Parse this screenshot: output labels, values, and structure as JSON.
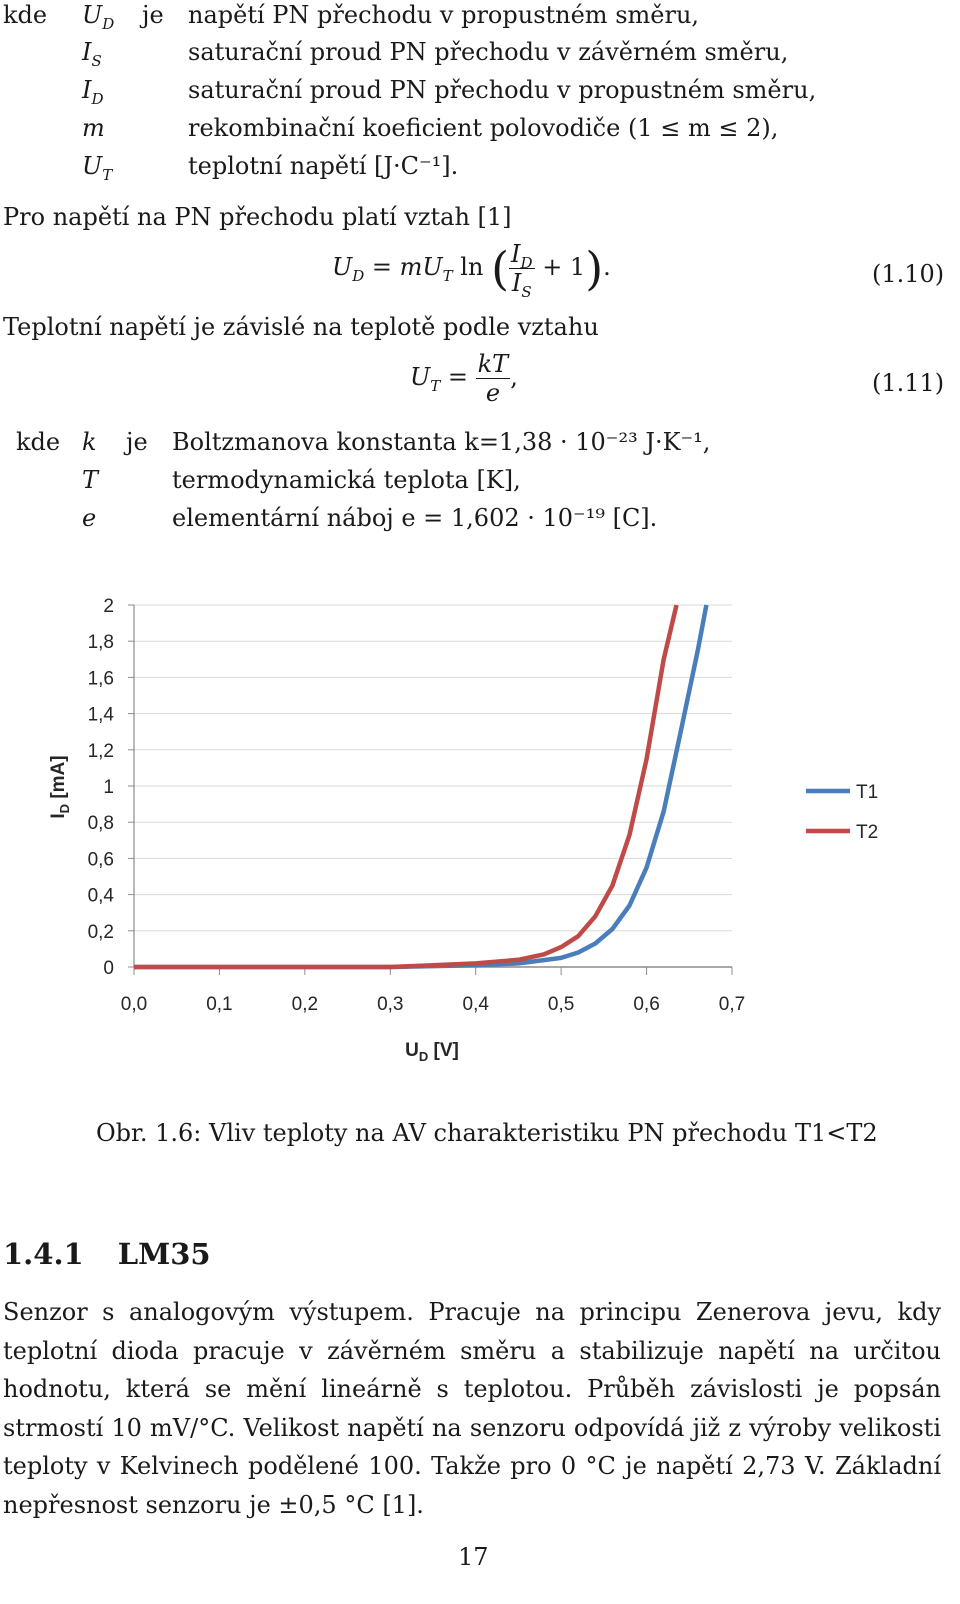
{
  "legend_rows": [
    {
      "lead": "kde",
      "sym": "U",
      "sub": "D",
      "mid": "je",
      "desc": "napětí PN přechodu v propustném směru,"
    },
    {
      "lead": "",
      "sym": "I",
      "sub": "S",
      "mid": "",
      "desc": "saturační proud PN přechodu v závěrném směru,"
    },
    {
      "lead": "",
      "sym": "I",
      "sub": "D",
      "mid": "",
      "desc": "saturační proud PN přechodu v propustném směru,"
    },
    {
      "lead": "",
      "sym": "m",
      "sub": "",
      "mid": "",
      "desc": "rekombinační koeficient polovodiče (1 ≤ m ≤ 2),"
    },
    {
      "lead": "",
      "sym": "U",
      "sub": "T",
      "mid": "",
      "desc": "teplotní napětí [J·C⁻¹]."
    }
  ],
  "line_pn": "Pro napětí na PN přechodu platí vztah [1]",
  "eq1": {
    "lhs": "U",
    "lhs_sub": "D",
    "rhs_a": "= mU",
    "rhs_a_sub": "T",
    "ln": "ln",
    "num": "I",
    "num_sub": "D",
    "den": "I",
    "den_sub": "S",
    "tail": "+ 1",
    "end": ".",
    "number": "(1.10)"
  },
  "line_temp": "Teplotní napětí je závislé na teplotě podle vztahu",
  "eq2": {
    "lhs": "U",
    "lhs_sub": "T",
    "eqsign": "=",
    "num": "kT",
    "den": "e",
    "end": ",",
    "number": "(1.11)"
  },
  "const_rows": [
    {
      "lead": "kde",
      "sym": "k",
      "mid": "je",
      "desc": "Boltzmanova konstanta k=1,38 · 10⁻²³ J·K⁻¹,"
    },
    {
      "lead": "",
      "sym": "T",
      "mid": "",
      "desc": "termodynamická teplota [K],"
    },
    {
      "lead": "",
      "sym": "e",
      "mid": "",
      "desc": "elementární náboj e = 1,602 · 10⁻¹⁹ [C]."
    }
  ],
  "chart_data": {
    "type": "line",
    "xlabel_main": "U",
    "xlabel_sub": "D",
    "xlabel_unit": "[V]",
    "ylabel_main": "I",
    "ylabel_sub": "D",
    "ylabel_unit": "[mA]",
    "xlim": [
      0,
      0.7
    ],
    "ylim": [
      0,
      2
    ],
    "x_ticks": [
      "0,0",
      "0,1",
      "0,2",
      "0,3",
      "0,4",
      "0,5",
      "0,6",
      "0,7"
    ],
    "y_ticks": [
      "0",
      "0,2",
      "0,4",
      "0,6",
      "0,8",
      "1",
      "1,2",
      "1,4",
      "1,6",
      "1,8",
      "2"
    ],
    "grid": "horizontal",
    "legend": "right",
    "series": [
      {
        "name": "T1",
        "color": "#4a7ebb",
        "x": [
          0.0,
          0.1,
          0.2,
          0.3,
          0.4,
          0.45,
          0.5,
          0.52,
          0.54,
          0.56,
          0.58,
          0.6,
          0.62,
          0.64,
          0.66,
          0.67
        ],
        "y": [
          0.0,
          0.0,
          0.0,
          0.0,
          0.01,
          0.02,
          0.05,
          0.08,
          0.13,
          0.21,
          0.34,
          0.55,
          0.86,
          1.3,
          1.75,
          2.0
        ]
      },
      {
        "name": "T2",
        "color": "#be4b48",
        "x": [
          0.0,
          0.1,
          0.2,
          0.3,
          0.35,
          0.4,
          0.45,
          0.48,
          0.5,
          0.52,
          0.54,
          0.56,
          0.58,
          0.6,
          0.62,
          0.635
        ],
        "y": [
          0.0,
          0.0,
          0.0,
          0.0,
          0.01,
          0.02,
          0.04,
          0.07,
          0.11,
          0.17,
          0.28,
          0.45,
          0.73,
          1.15,
          1.7,
          2.0
        ]
      }
    ]
  },
  "caption": "Obr. 1.6: Vliv teploty na AV charakteristiku PN přechodu T1<T2",
  "section": {
    "number": "1.4.1",
    "title": "LM35"
  },
  "paragraph": "Senzor s analogovým výstupem. Pracuje na principu Zenerova jevu, kdy teplotní dioda pracuje v závěrném směru a stabilizuje napětí na určitou hodnotu, která se mění lineárně s teplotou. Průběh závislosti je popsán strmostí 10 mV/°C. Velikost napětí na senzoru odpovídá již z výroby velikosti teploty v Kelvinech podělené 100. Takže pro 0 °C je napětí 2,73 V. Základní nepřesnost senzoru je ±0,5 °C [1].",
  "page_number": "17"
}
